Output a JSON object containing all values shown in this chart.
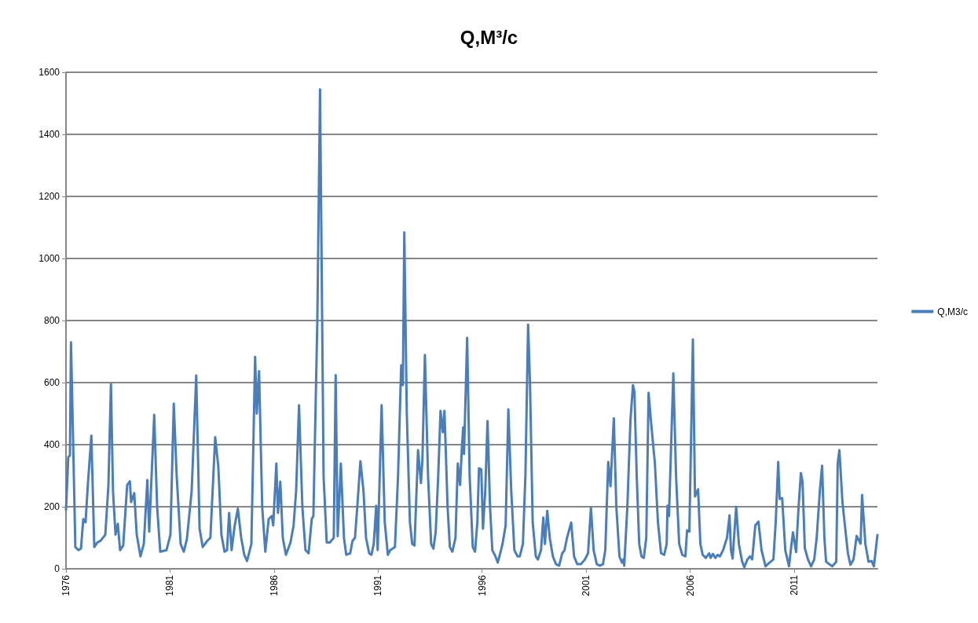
{
  "chart_data": {
    "type": "line",
    "title": "Q,M³/c",
    "x": [
      1976.0,
      1976.11,
      1976.19,
      1976.24,
      1976.34,
      1976.45,
      1976.6,
      1976.72,
      1976.83,
      1976.94,
      1977.06,
      1977.22,
      1977.36,
      1977.51,
      1977.66,
      1977.89,
      1978.04,
      1978.16,
      1978.26,
      1978.38,
      1978.49,
      1978.6,
      1978.75,
      1978.94,
      1979.07,
      1979.13,
      1979.28,
      1979.4,
      1979.58,
      1979.74,
      1979.91,
      1980.0,
      1980.24,
      1980.38,
      1980.53,
      1980.83,
      1981.02,
      1981.18,
      1981.32,
      1981.51,
      1981.66,
      1981.81,
      1982.04,
      1982.26,
      1982.42,
      1982.57,
      1982.79,
      1982.94,
      1983.17,
      1983.32,
      1983.47,
      1983.62,
      1983.74,
      1983.84,
      1983.96,
      1984.11,
      1984.26,
      1984.42,
      1984.57,
      1984.7,
      1984.91,
      1985.09,
      1985.17,
      1985.28,
      1985.43,
      1985.58,
      1985.74,
      1985.89,
      1985.96,
      1986.11,
      1986.19,
      1986.3,
      1986.42,
      1986.57,
      1986.79,
      1986.94,
      1987.06,
      1987.2,
      1987.36,
      1987.51,
      1987.66,
      1987.81,
      1987.89,
      1988.08,
      1988.21,
      1988.38,
      1988.53,
      1988.68,
      1988.87,
      1988.96,
      1989.06,
      1989.21,
      1989.36,
      1989.47,
      1989.66,
      1989.77,
      1989.89,
      1990.0,
      1990.15,
      1990.3,
      1990.42,
      1990.57,
      1990.68,
      1990.79,
      1990.91,
      1990.98,
      1991.17,
      1991.32,
      1991.47,
      1991.58,
      1991.7,
      1991.81,
      1991.96,
      1992.11,
      1992.19,
      1992.26,
      1992.38,
      1992.53,
      1992.64,
      1992.75,
      1992.92,
      1993.06,
      1993.13,
      1993.25,
      1993.4,
      1993.55,
      1993.66,
      1993.77,
      1993.89,
      1994.0,
      1994.11,
      1994.19,
      1994.34,
      1994.45,
      1994.57,
      1994.72,
      1994.83,
      1994.94,
      1995.02,
      1995.09,
      1995.13,
      1995.28,
      1995.4,
      1995.55,
      1995.66,
      1995.77,
      1995.85,
      1995.96,
      1996.04,
      1996.15,
      1996.26,
      1996.38,
      1996.49,
      1996.64,
      1996.75,
      1996.87,
      1996.98,
      1997.13,
      1997.26,
      1997.4,
      1997.55,
      1997.7,
      1997.81,
      1997.96,
      1998.08,
      1998.21,
      1998.3,
      1998.43,
      1998.58,
      1998.68,
      1998.83,
      1998.94,
      1999.02,
      1999.13,
      1999.25,
      1999.4,
      1999.55,
      1999.7,
      1999.85,
      1999.96,
      2000.08,
      2000.28,
      2000.42,
      2000.57,
      2000.75,
      2000.94,
      2001.09,
      2001.23,
      2001.36,
      2001.51,
      2001.66,
      2001.81,
      2001.92,
      2002.06,
      2002.17,
      2002.33,
      2002.45,
      2002.6,
      2002.72,
      2002.79,
      2002.83,
      2002.98,
      2003.13,
      2003.25,
      2003.32,
      2003.43,
      2003.55,
      2003.66,
      2003.77,
      2003.89,
      2004.0,
      2004.11,
      2004.26,
      2004.3,
      2004.45,
      2004.6,
      2004.75,
      2004.87,
      2004.91,
      2004.98,
      2005.19,
      2005.32,
      2005.47,
      2005.62,
      2005.77,
      2005.85,
      2005.96,
      2006.13,
      2006.23,
      2006.38,
      2006.49,
      2006.6,
      2006.75,
      2006.91,
      2006.98,
      2007.09,
      2007.21,
      2007.32,
      2007.43,
      2007.58,
      2007.77,
      2007.89,
      2007.96,
      2008.04,
      2008.21,
      2008.34,
      2008.49,
      2008.6,
      2008.75,
      2008.87,
      2008.98,
      2009.13,
      2009.28,
      2009.43,
      2009.62,
      2009.81,
      2010.0,
      2010.11,
      2010.23,
      2010.3,
      2010.42,
      2010.57,
      2010.75,
      2010.87,
      2010.94,
      2011.09,
      2011.21,
      2011.32,
      2011.4,
      2011.51,
      2011.66,
      2011.81,
      2011.96,
      2012.08,
      2012.23,
      2012.34,
      2012.45,
      2012.53,
      2012.68,
      2012.83,
      2013.02,
      2013.09,
      2013.17,
      2013.32,
      2013.47,
      2013.58,
      2013.7,
      2013.85,
      2014.0,
      2014.19,
      2014.26,
      2014.42,
      2014.57,
      2014.72,
      2014.83,
      2015.0
    ],
    "series": [
      {
        "name": "Q,M3/c",
        "color": "#4a7ebb",
        "values": [
          190,
          360,
          365,
          730,
          420,
          70,
          60,
          65,
          160,
          150,
          280,
          429,
          70,
          85,
          90,
          110,
          270,
          595,
          250,
          110,
          145,
          60,
          75,
          270,
          282,
          215,
          244,
          110,
          40,
          80,
          286,
          120,
          496,
          200,
          55,
          60,
          110,
          532,
          300,
          80,
          55,
          95,
          250,
          623,
          130,
          70,
          90,
          100,
          424,
          330,
          110,
          55,
          60,
          180,
          60,
          140,
          194,
          100,
          45,
          25,
          80,
          683,
          500,
          637,
          200,
          55,
          160,
          170,
          140,
          339,
          180,
          281,
          100,
          45,
          85,
          140,
          250,
          527,
          200,
          60,
          50,
          160,
          170,
          800,
          1545,
          300,
          85,
          85,
          100,
          624,
          105,
          339,
          100,
          45,
          50,
          90,
          100,
          200,
          347,
          250,
          100,
          50,
          45,
          80,
          203,
          60,
          527,
          150,
          45,
          60,
          65,
          70,
          300,
          656,
          592,
          1084,
          500,
          150,
          80,
          75,
          382,
          276,
          350,
          689,
          300,
          80,
          65,
          120,
          300,
          509,
          440,
          509,
          200,
          70,
          55,
          100,
          339,
          270,
          380,
          456,
          370,
          744,
          300,
          70,
          55,
          150,
          324,
          320,
          129,
          250,
          476,
          200,
          60,
          40,
          20,
          50,
          80,
          140,
          514,
          250,
          60,
          40,
          40,
          80,
          300,
          787,
          600,
          150,
          40,
          30,
          60,
          165,
          80,
          187,
          100,
          40,
          15,
          10,
          50,
          60,
          100,
          149,
          40,
          15,
          15,
          30,
          50,
          197,
          60,
          15,
          10,
          15,
          60,
          344,
          266,
          485,
          200,
          40,
          20,
          30,
          10,
          200,
          480,
          592,
          570,
          300,
          80,
          40,
          35,
          100,
          567,
          480,
          370,
          344,
          150,
          50,
          45,
          80,
          203,
          170,
          630,
          300,
          80,
          45,
          40,
          124,
          120,
          739,
          233,
          256,
          80,
          45,
          35,
          50,
          35,
          48,
          35,
          45,
          40,
          60,
          100,
          172,
          60,
          33,
          200,
          80,
          25,
          5,
          30,
          40,
          30,
          140,
          152,
          60,
          8,
          20,
          30,
          150,
          344,
          225,
          228,
          60,
          8,
          80,
          118,
          54,
          200,
          308,
          280,
          66,
          30,
          8,
          30,
          100,
          250,
          332,
          100,
          23,
          15,
          8,
          23,
          340,
          382,
          213,
          118,
          50,
          13,
          30,
          106,
          81,
          238,
          80,
          23,
          25,
          8,
          109
        ]
      }
    ],
    "xlim": [
      1976,
      2015
    ],
    "xticks": [
      1976,
      1981,
      1986,
      1991,
      1996,
      2001,
      2006,
      2011
    ],
    "ylim": [
      0,
      1600
    ],
    "yticks": [
      0,
      200,
      400,
      600,
      800,
      1000,
      1200,
      1400,
      1600
    ],
    "grid": "y",
    "legend": "right",
    "marker": "none",
    "line_style": "solid"
  }
}
